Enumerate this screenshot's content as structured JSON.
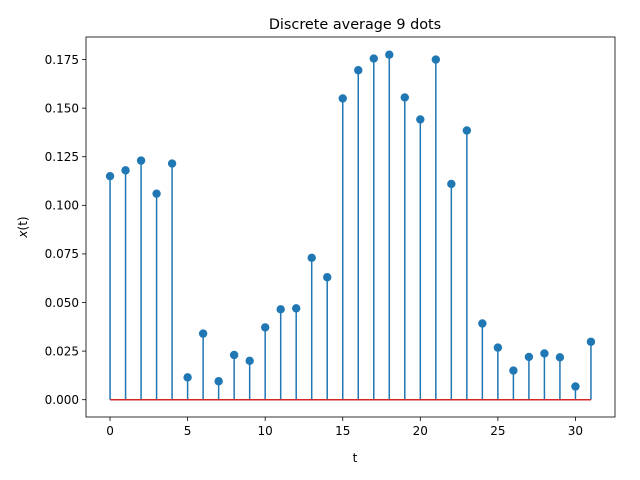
{
  "chart_data": {
    "type": "stem",
    "title": "Discrete average 9 dots",
    "xlabel": "t",
    "ylabel": "x(t)",
    "xlim": [
      -1.55,
      32.55
    ],
    "ylim": [
      -0.0089,
      0.1866
    ],
    "xticks": [
      0,
      5,
      10,
      15,
      20,
      25,
      30
    ],
    "xtick_labels": [
      "0",
      "5",
      "10",
      "15",
      "20",
      "25",
      "30"
    ],
    "yticks": [
      0.0,
      0.025,
      0.05,
      0.075,
      0.1,
      0.125,
      0.15,
      0.175
    ],
    "ytick_labels": [
      "0.000",
      "0.025",
      "0.050",
      "0.075",
      "0.100",
      "0.125",
      "0.150",
      "0.175"
    ],
    "grid": false,
    "stem_color": "#1f77b4",
    "baseline_color": "#d62728",
    "x": [
      0,
      1,
      2,
      3,
      4,
      5,
      6,
      7,
      8,
      9,
      10,
      11,
      12,
      13,
      14,
      15,
      16,
      17,
      18,
      19,
      20,
      21,
      22,
      23,
      24,
      25,
      26,
      27,
      28,
      29,
      30,
      31
    ],
    "values": [
      0.115,
      0.118,
      0.123,
      0.106,
      0.1215,
      0.0115,
      0.034,
      0.0095,
      0.023,
      0.02,
      0.0372,
      0.0465,
      0.047,
      0.073,
      0.063,
      0.155,
      0.1695,
      0.1755,
      0.1775,
      0.1555,
      0.1442,
      0.175,
      0.111,
      0.1385,
      0.0392,
      0.0268,
      0.015,
      0.022,
      0.0238,
      0.0218,
      0.0068,
      0.0298
    ]
  }
}
